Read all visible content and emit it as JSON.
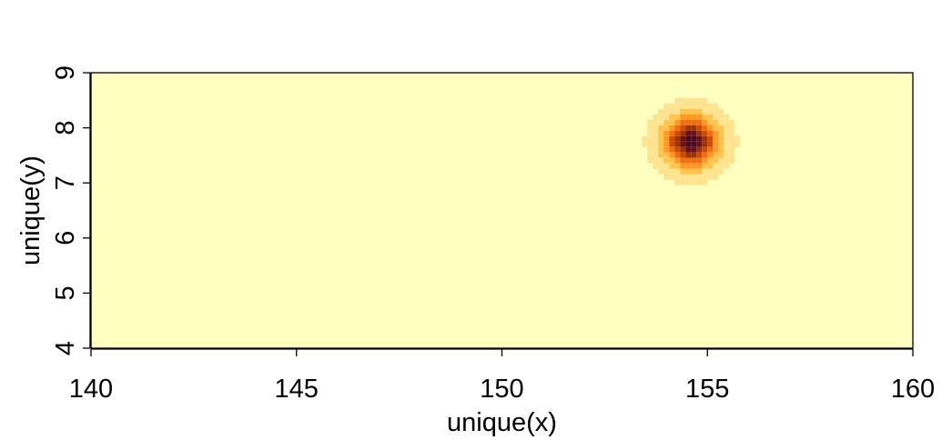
{
  "chart_data": {
    "type": "heatmap",
    "title": "",
    "xlabel": "unique(x)",
    "ylabel": "unique(y)",
    "xlim": [
      140,
      160
    ],
    "ylim": [
      4,
      9
    ],
    "x_ticks": [
      140,
      145,
      150,
      155,
      160
    ],
    "y_ticks": [
      4,
      5,
      6,
      7,
      8,
      9
    ],
    "x_tick_labels": [
      "140",
      "145",
      "150",
      "155",
      "160"
    ],
    "y_tick_labels": [
      "4",
      "5",
      "6",
      "7",
      "8",
      "9"
    ],
    "grid": false,
    "legend": "none",
    "hotspot": {
      "x": 154.6,
      "y": 7.75,
      "radius_x": 0.8,
      "radius_y": 0.55
    },
    "colormap": [
      "#FFFFBF",
      "#FEE391",
      "#FEC44F",
      "#FE9929",
      "#EC7014",
      "#CC4C02",
      "#993404",
      "#6B0F1A",
      "#4A0A1E"
    ],
    "background_color": "#FFFFBF"
  }
}
